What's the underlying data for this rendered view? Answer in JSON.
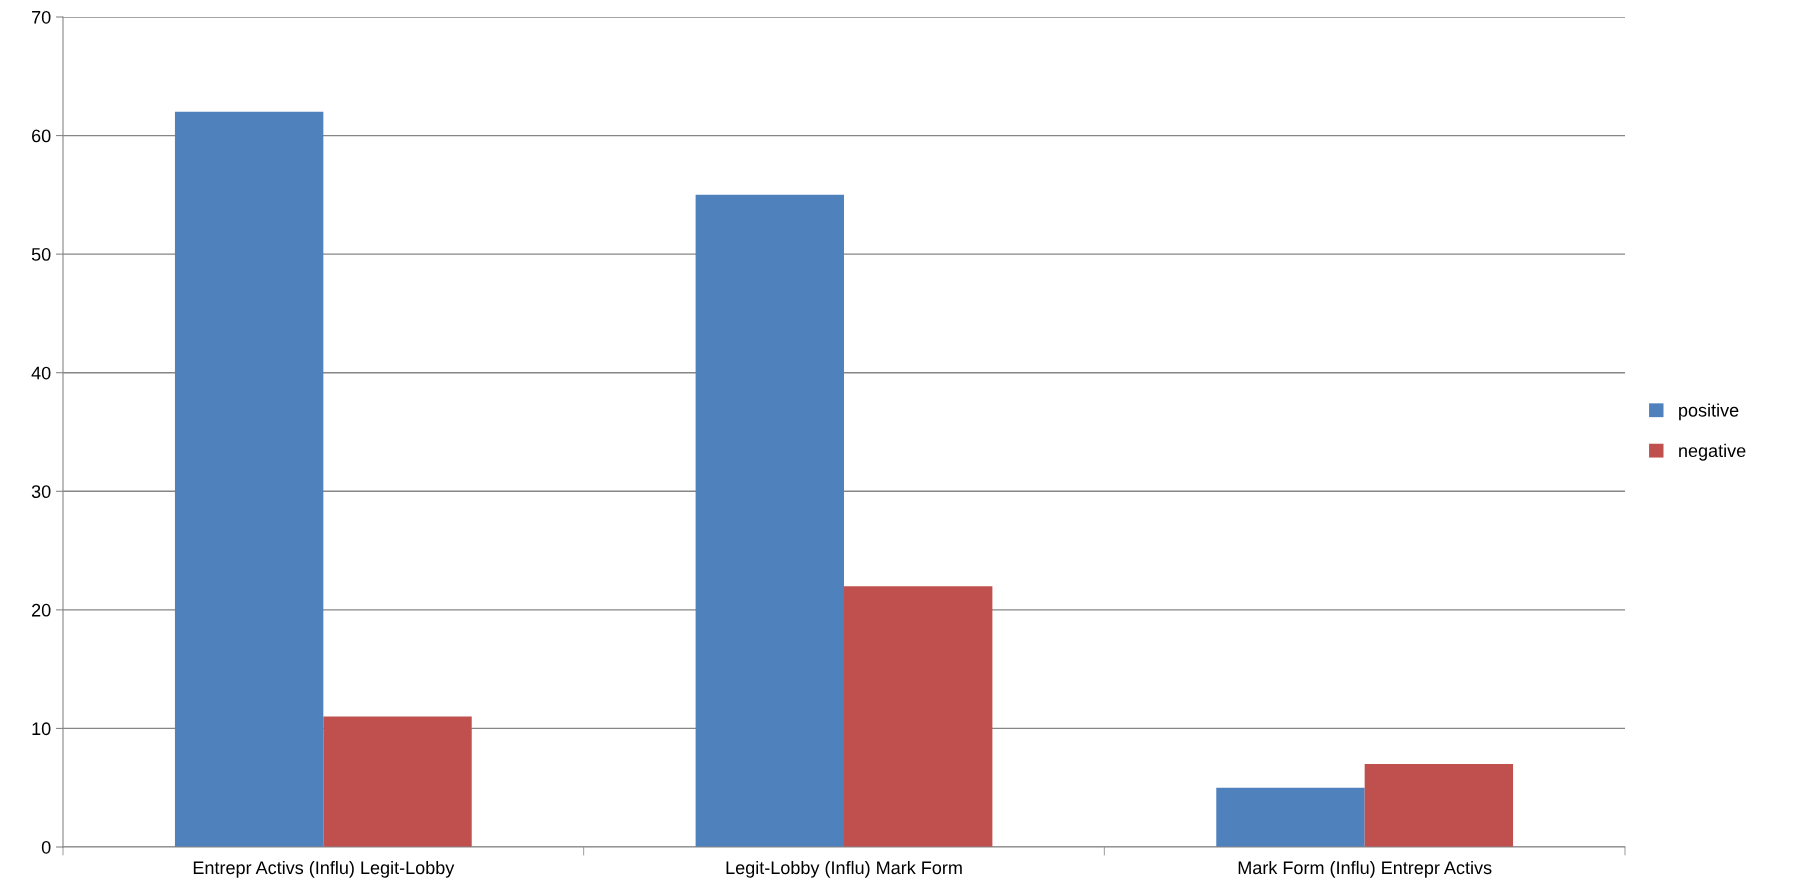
{
  "chart_data": {
    "type": "bar",
    "categories": [
      "Entrepr Activs (Influ) Legit-Lobby",
      "Legit-Lobby (Influ) Mark Form",
      "Mark Form (Influ) Entrepr Activs"
    ],
    "series": [
      {
        "name": "positive",
        "color": "#4f81bd",
        "values": [
          62,
          55,
          5
        ]
      },
      {
        "name": "negative",
        "color": "#c0504d",
        "values": [
          11,
          22,
          7
        ]
      }
    ],
    "ylim": [
      0,
      70
    ],
    "yticks": [
      0,
      10,
      20,
      30,
      40,
      50,
      60,
      70
    ],
    "grid": "y",
    "legend": "right"
  }
}
